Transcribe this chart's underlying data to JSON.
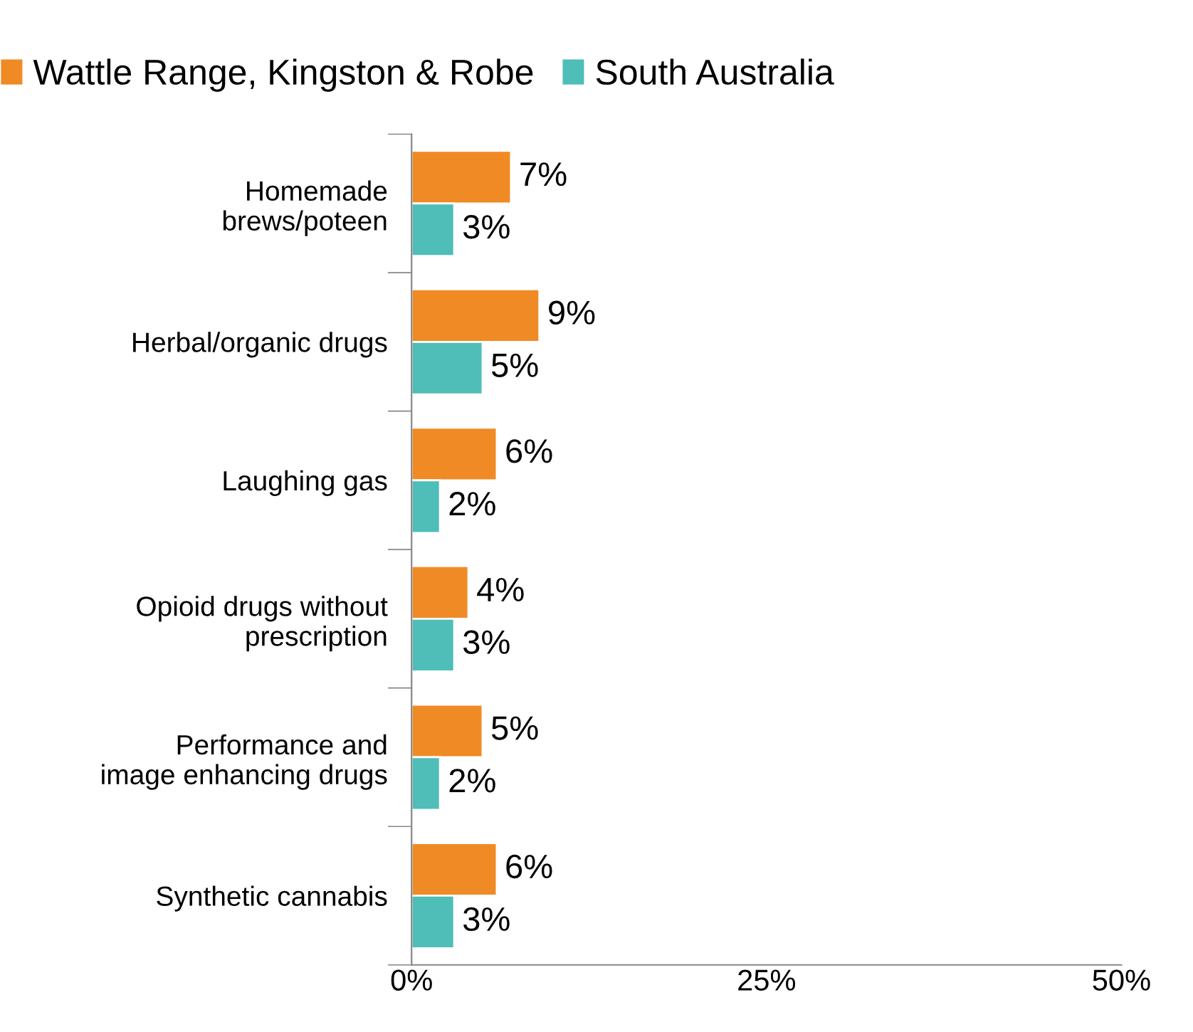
{
  "chart_data": {
    "type": "bar",
    "orientation": "horizontal",
    "categories": [
      "Homemade\nbrews/poteen",
      "Herbal/organic drugs",
      "Laughing gas",
      "Opioid drugs without\nprescription",
      "Performance and\nimage enhancing drugs",
      "Synthetic cannabis"
    ],
    "series": [
      {
        "name": "Wattle Range, Kingston & Robe",
        "color": "#f08a24",
        "values": [
          7,
          9,
          6,
          4,
          5,
          6
        ],
        "value_labels": [
          "7%",
          "9%",
          "6%",
          "4%",
          "5%",
          "6%"
        ]
      },
      {
        "name": "South Australia",
        "color": "#4fbdb8",
        "values": [
          3,
          5,
          2,
          3,
          2,
          3
        ],
        "value_labels": [
          "3%",
          "5%",
          "2%",
          "3%",
          "2%",
          "3%"
        ]
      }
    ],
    "xlim": [
      0,
      50
    ],
    "xticks": [
      {
        "value": 0,
        "label": "0%"
      },
      {
        "value": 25,
        "label": "25%"
      },
      {
        "value": 50,
        "label": "50%"
      }
    ],
    "grid": false,
    "legend": "top"
  }
}
